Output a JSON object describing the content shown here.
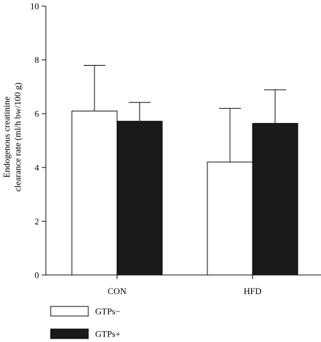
{
  "chart_data": {
    "type": "bar",
    "categories": [
      "CON",
      "HFD"
    ],
    "series": [
      {
        "name": "GTPs−",
        "values": [
          6.1,
          4.2
        ],
        "errors": [
          1.7,
          2.0
        ],
        "color": "#ffffff"
      },
      {
        "name": "GTPs+",
        "values": [
          5.72,
          5.64
        ],
        "errors": [
          0.7,
          1.25
        ],
        "color": "#1a1a1a"
      }
    ],
    "ylabel_lines": [
      "Endogenous creatinine",
      "clearance rate (ml/h bw/100 g)"
    ],
    "yticks": [
      "0",
      "2",
      "4",
      "6",
      "8",
      "10"
    ],
    "ylim": [
      0,
      10
    ],
    "legend_position": "bottom-left"
  }
}
